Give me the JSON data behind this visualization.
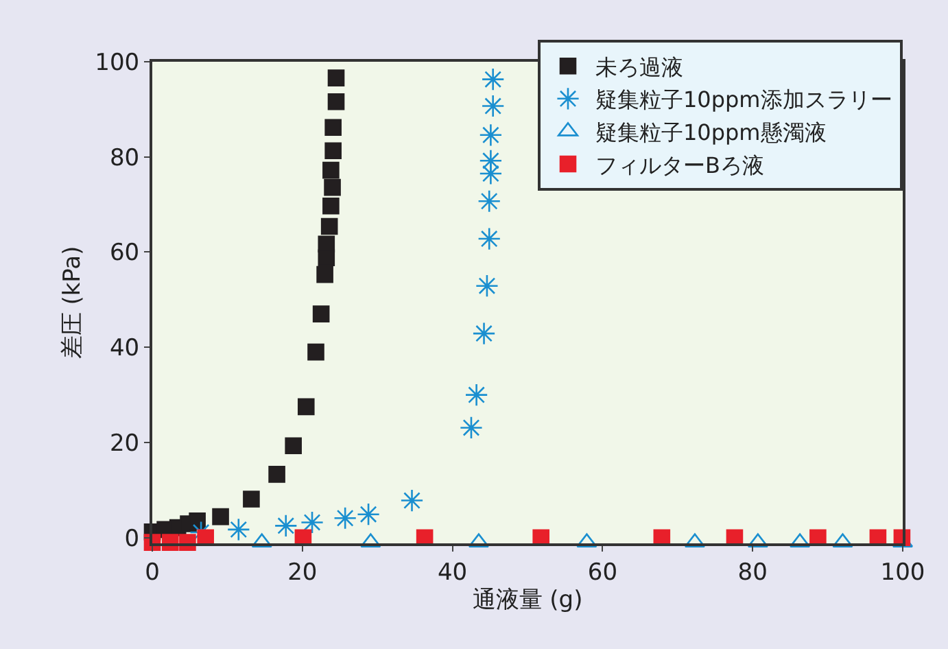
{
  "chart_data": {
    "type": "scatter",
    "xlabel": "通液量 (g)",
    "ylabel": "差圧 (kPa)",
    "xlim": [
      0,
      100
    ],
    "ylim": [
      -1.2,
      100
    ],
    "xticks": [
      0,
      20,
      40,
      60,
      80,
      100
    ],
    "yticks": [
      0,
      20,
      40,
      60,
      80,
      100
    ],
    "grid": false,
    "legend": "top right",
    "series": [
      {
        "name": "未ろ過液",
        "color": "#231f20",
        "marker": "square",
        "x": [
          0,
          1.7,
          3.4,
          4.8,
          6.0,
          9.1,
          13.2,
          16.6,
          18.8,
          20.5,
          21.8,
          22.5,
          23.0,
          23.2,
          23.2,
          23.6,
          23.8,
          24.0,
          23.8,
          24.1,
          24.1,
          24.5,
          24.5
        ],
        "values": [
          1.2,
          1.7,
          2.1,
          2.9,
          3.5,
          4.4,
          8.1,
          13.3,
          19.3,
          27.5,
          39,
          47,
          55.3,
          58.8,
          61.7,
          65.4,
          69.7,
          73.6,
          77.2,
          81.3,
          86.2,
          91.6,
          96.6
        ]
      },
      {
        "name": "疑集粒子10ppm添加スラリー",
        "color": "#1a8fd0",
        "marker": "cross",
        "x": [
          6.5,
          11.5,
          17.8,
          21.3,
          25.7,
          28.8,
          34.6,
          42.5,
          43.2,
          44.2,
          44.6,
          44.9,
          44.9,
          45.1,
          45.1,
          45.1,
          45.4,
          45.4
        ],
        "values": [
          1.1,
          1.7,
          2.5,
          3.2,
          4.1,
          4.9,
          7.8,
          23.1,
          30,
          42.9,
          52.9,
          62.8,
          70.7,
          76.5,
          79.2,
          84.6,
          90.7,
          96.3
        ]
      },
      {
        "name": "疑集粒子10ppm懸濁液",
        "color": "#1a8fd0",
        "marker": "triangle",
        "x": [
          14.6,
          29.1,
          43.5,
          57.9,
          72.3,
          80.7,
          86.3,
          92.0,
          100
        ],
        "values": [
          -1,
          -1,
          -1,
          -1,
          -1,
          -1,
          -1,
          -1,
          -1
        ]
      },
      {
        "name": "フィルターBろ液",
        "color": "#e8202a",
        "marker": "square",
        "x": [
          0,
          2.4,
          4.7,
          7.1,
          20.1,
          36.3,
          51.8,
          67.9,
          77.6,
          88.7,
          96.7,
          99.9
        ],
        "values": [
          -1,
          -1,
          -1,
          0,
          0,
          0,
          0,
          0,
          0,
          0,
          0,
          0
        ]
      }
    ]
  }
}
